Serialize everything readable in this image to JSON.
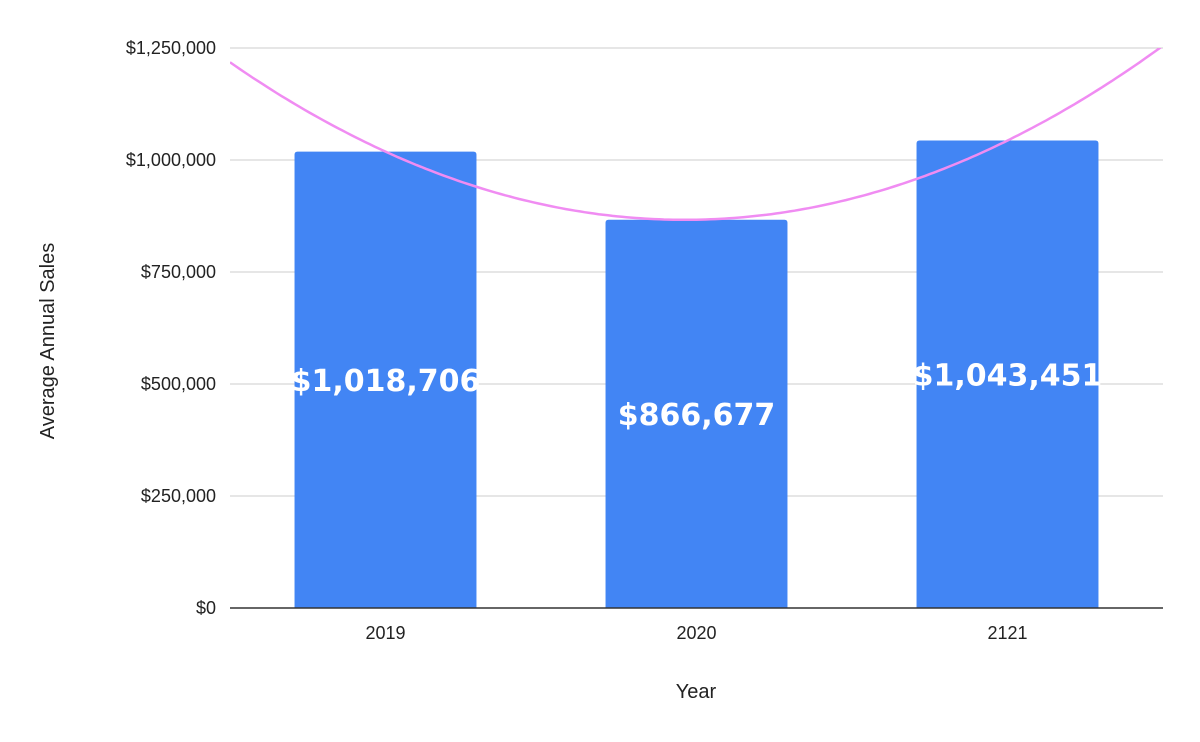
{
  "chart_data": {
    "type": "bar",
    "title": "",
    "xlabel": "Year",
    "ylabel": "Average Annual Sales",
    "categories": [
      "2019",
      "2020",
      "2121"
    ],
    "values": [
      1018706,
      866677,
      1043451
    ],
    "data_labels": [
      "$1,018,706",
      "$866,677",
      "$1,043,451"
    ],
    "ylim": [
      0,
      1250000
    ],
    "yticks": [
      0,
      250000,
      500000,
      750000,
      1000000,
      1250000
    ],
    "ytick_labels": [
      "$0",
      "$250,000",
      "$500,000",
      "$750,000",
      "$1,000,000",
      "$1,250,000"
    ],
    "grid": true,
    "legend": "none",
    "trendline": {
      "type": "polynomial",
      "degree": 2,
      "color": "#f08cf2"
    },
    "colors": {
      "bar": "#4285f4",
      "grid": "#cccccc",
      "axis": "#333333",
      "data_label": "#ffffff"
    }
  }
}
